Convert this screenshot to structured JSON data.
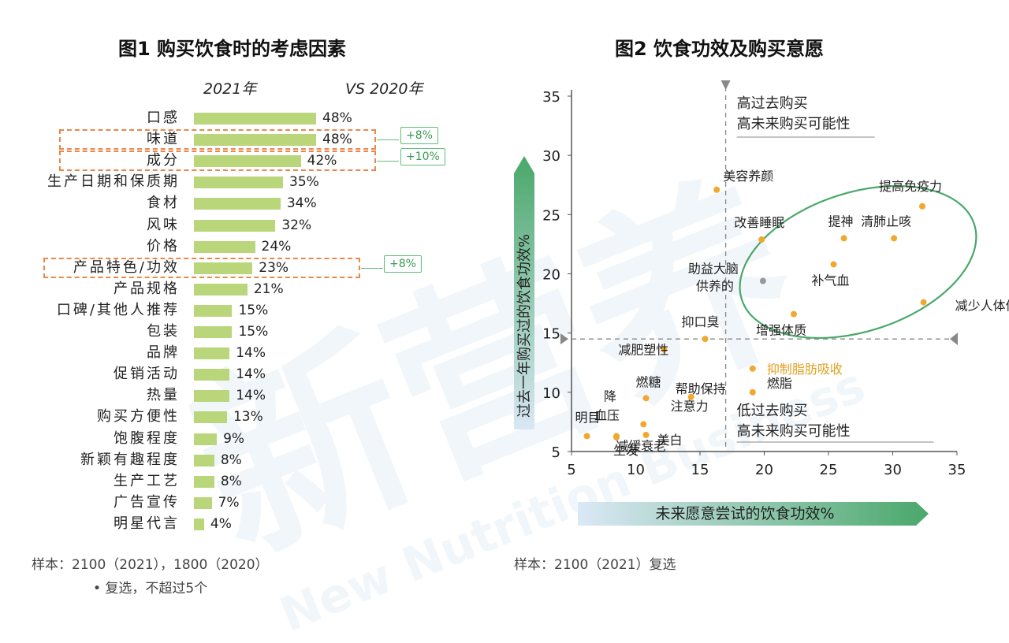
{
  "chart_data": [
    {
      "type": "bar",
      "title": "图1 购买饮食时的考虑因素",
      "header_left": "2021年",
      "header_right": "VS 2020年",
      "categories": [
        "口感",
        "味道",
        "成分",
        "生产日期和保质期",
        "食材",
        "风味",
        "价格",
        "产品特色/功效",
        "产品规格",
        "口碑/其他人推荐",
        "包装",
        "品牌",
        "促销活动",
        "热量",
        "购买方便性",
        "饱腹程度",
        "新颖有趣程度",
        "生产工艺",
        "广告宣传",
        "明星代言"
      ],
      "values": [
        48,
        48,
        42,
        35,
        34,
        32,
        24,
        23,
        21,
        15,
        15,
        14,
        14,
        14,
        13,
        9,
        8,
        8,
        7,
        4
      ],
      "value_labels": [
        "48%",
        "48%",
        "42%",
        "35%",
        "34%",
        "32%",
        "24%",
        "23%",
        "21%",
        "15%",
        "15%",
        "14%",
        "14%",
        "14%",
        "13%",
        "9%",
        "8%",
        "8%",
        "7%",
        "4%"
      ],
      "highlights": [
        {
          "category": "味道",
          "change": "+8%"
        },
        {
          "category": "成分",
          "change": "+10%"
        },
        {
          "category": "产品特色/功效",
          "change": "+8%"
        }
      ],
      "bar_color": "#b9d77a",
      "footnote": [
        "样本：2100（2021），1800（2020）",
        "• 复选，不超过5个"
      ]
    },
    {
      "type": "scatter",
      "title": "图2 饮食功效及购买意愿",
      "xlabel": "未来愿意尝试的饮食功效%",
      "ylabel": "过去一年购买过的饮食功效%",
      "xlim": [
        5,
        35
      ],
      "ylim": [
        5,
        35
      ],
      "xticks": [
        5,
        10,
        15,
        20,
        25,
        30,
        35
      ],
      "yticks": [
        5,
        10,
        15,
        20,
        25,
        30,
        35
      ],
      "xref": 17.0,
      "yref": 14.5,
      "points": [
        {
          "label": "美容养颜",
          "x": 16.3,
          "y": 27.1
        },
        {
          "label": "提高免疫力",
          "x": 32.3,
          "y": 25.7
        },
        {
          "label": "改善睡眠",
          "x": 19.8,
          "y": 22.9
        },
        {
          "label": "提神",
          "x": 26.2,
          "y": 23.0
        },
        {
          "label": "清肺止咳",
          "x": 30.1,
          "y": 23.0
        },
        {
          "label": "补气血",
          "x": 25.4,
          "y": 20.8
        },
        {
          "label": "助益大脑供养的",
          "x": 19.9,
          "y": 19.4
        },
        {
          "label": "减少人体体内脂肪",
          "x": 32.4,
          "y": 17.6
        },
        {
          "label": "增强体质",
          "x": 22.3,
          "y": 16.6
        },
        {
          "label": "抑口臭",
          "x": 15.4,
          "y": 14.5
        },
        {
          "label": "减肥塑性",
          "x": 12.2,
          "y": 13.6
        },
        {
          "label": "帮助保持注意力",
          "x": 14.3,
          "y": 9.6
        },
        {
          "label": "抑制脂肪吸收",
          "x": 19.1,
          "y": 12.0
        },
        {
          "label": "燃脂",
          "x": 19.1,
          "y": 10.0
        },
        {
          "label": "燃糖",
          "x": 10.8,
          "y": 9.5
        },
        {
          "label": "减缓衰老",
          "x": 10.6,
          "y": 7.3
        },
        {
          "label": "降血压",
          "x": 8.5,
          "y": 6.3
        },
        {
          "label": "明目",
          "x": 6.2,
          "y": 6.3
        },
        {
          "label": "生发",
          "x": 8.5,
          "y": 6.2
        },
        {
          "label": "美白",
          "x": 10.8,
          "y": 6.4
        }
      ],
      "quadrant_labels": {
        "top": [
          "高过去购买",
          "高未来购买可能性"
        ],
        "bottom": [
          "低过去购买",
          "高未来购买可能性"
        ]
      },
      "point_color": "#f0a830",
      "highlight_point_color": "#999999",
      "highlight_label": "抑制脂肪吸收",
      "highlight_label_color": "#e0a020",
      "footnote": "样本：2100（2021）复选"
    }
  ],
  "watermark": "新营养",
  "watermark_sub": "New Nutrition Business"
}
